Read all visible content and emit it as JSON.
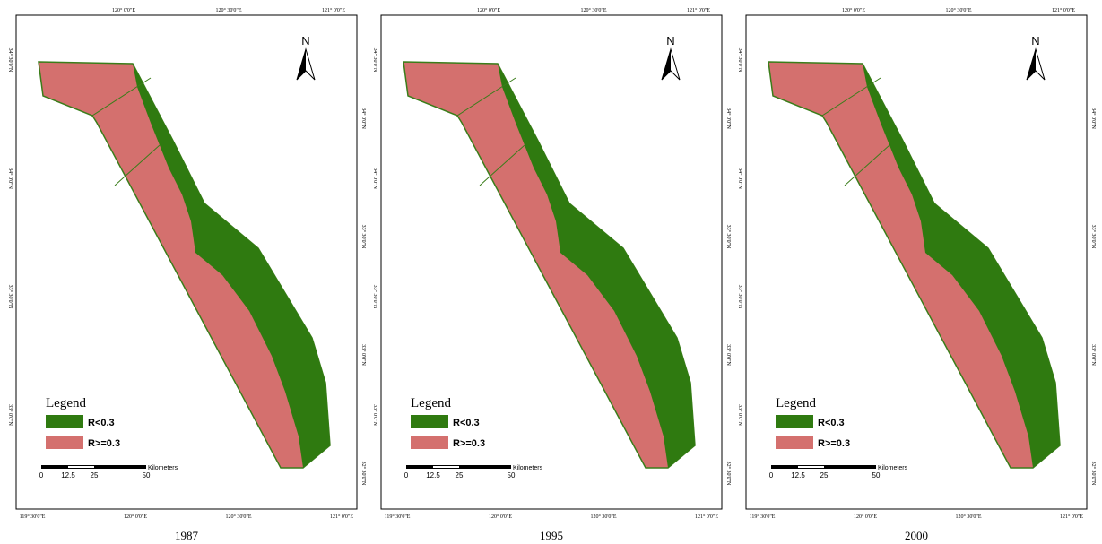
{
  "panels": [
    {
      "year": "1987",
      "top_lon": [
        "120° 0'0\"E",
        "120° 30'0\"E",
        "121° 0'0\"E"
      ],
      "bottom_lon": [
        "119° 30'0\"E",
        "120° 0'0\"E",
        "120° 30'0\"E",
        "121° 0'0\"E"
      ],
      "left_lat": [
        "34° 30'0\"N",
        "34° 0'0\"N",
        "33° 30'0\"N",
        "33° 0'0\"N"
      ],
      "right_lat": [
        "34° 0'0\"N",
        "33° 30'0\"N",
        "33° 0'0\"N",
        "32° 30'0\"N"
      ],
      "north": "N",
      "legend": {
        "title": "Legend",
        "items": [
          "R<0.3",
          "R>=0.3"
        ]
      },
      "scale": {
        "labels": [
          "0",
          "12.5",
          "25",
          "50"
        ],
        "unit": "Kilometers"
      }
    },
    {
      "year": "1995",
      "top_lon": [
        "120° 0'0\"E",
        "120° 30'0\"E",
        "121° 0'0\"E"
      ],
      "bottom_lon": [
        "119° 30'0\"E",
        "120° 0'0\"E",
        "120° 30'0\"E",
        "121° 0'0\"E"
      ],
      "left_lat": [
        "34° 30'0\"N",
        "34° 0'0\"N",
        "33° 30'0\"N",
        "33° 0'0\"N"
      ],
      "right_lat": [
        "34° 0'0\"N",
        "33° 30'0\"N",
        "33° 0'0\"N",
        "32° 30'0\"N"
      ],
      "north": "N",
      "legend": {
        "title": "Legend",
        "items": [
          "R<0.3",
          "R>=0.3"
        ]
      },
      "scale": {
        "labels": [
          "0",
          "12.5",
          "25",
          "50"
        ],
        "unit": "Kilometers"
      }
    },
    {
      "year": "2000",
      "top_lon": [
        "120° 0'0\"E",
        "120° 30'0\"E",
        "121° 0'0\"E"
      ],
      "bottom_lon": [
        "119° 30'0\"E",
        "120° 0'0\"E",
        "120° 30'0\"E",
        "121° 0'0\"E"
      ],
      "left_lat": [
        "34° 30'0\"N",
        "34° 0'0\"N",
        "33° 30'0\"N",
        "33° 0'0\"N"
      ],
      "right_lat": [
        "34° 0'0\"N",
        "33° 30'0\"N",
        "33° 0'0\"N",
        "32° 30'0\"N"
      ],
      "north": "N",
      "legend": {
        "title": "Legend",
        "items": [
          "R<0.3",
          "R>=0.3"
        ]
      },
      "scale": {
        "labels": [
          "0",
          "12.5",
          "25",
          "50"
        ],
        "unit": "Kilometers"
      }
    }
  ]
}
